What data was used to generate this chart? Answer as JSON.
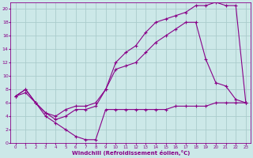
{
  "xlabel": "Windchill (Refroidissement éolien,°C)",
  "bg_color": "#cce8e8",
  "grid_color": "#aacccc",
  "line_color": "#880088",
  "xlim": [
    -0.5,
    23.5
  ],
  "ylim": [
    0,
    21
  ],
  "ytick_vals": [
    0,
    2,
    4,
    6,
    8,
    10,
    12,
    14,
    16,
    18,
    20
  ],
  "series": [
    {
      "x": [
        0,
        1,
        2,
        3,
        4,
        5,
        6,
        7,
        8,
        9,
        10,
        11,
        12,
        13,
        14,
        15,
        16,
        17,
        18,
        19,
        20,
        21,
        22,
        23
      ],
      "y": [
        7,
        7.5,
        6,
        4,
        3,
        2,
        1,
        0.5,
        0.5,
        5,
        5,
        5,
        5,
        5,
        5,
        5,
        5.5,
        5.5,
        5.5,
        5.5,
        6,
        6,
        6,
        6
      ]
    },
    {
      "x": [
        0,
        1,
        2,
        3,
        4,
        5,
        6,
        7,
        8,
        9,
        10,
        11,
        12,
        13,
        14,
        15,
        16,
        17,
        18,
        19,
        20,
        21,
        22,
        23
      ],
      "y": [
        7,
        8,
        6,
        4.5,
        3.5,
        4,
        5,
        5,
        5.5,
        8,
        11,
        11.5,
        12,
        13.5,
        15,
        16,
        17,
        18,
        18,
        12.5,
        9,
        8.5,
        6.5,
        6
      ]
    },
    {
      "x": [
        0,
        1,
        2,
        3,
        4,
        5,
        6,
        7,
        8,
        9,
        10,
        11,
        12,
        13,
        14,
        15,
        16,
        17,
        18,
        19,
        20,
        21,
        22,
        23
      ],
      "y": [
        7,
        8,
        6,
        4.5,
        4,
        5,
        5.5,
        5.5,
        6,
        8,
        12,
        13.5,
        14.5,
        16.5,
        18,
        18.5,
        19,
        19.5,
        20.5,
        20.5,
        21,
        20.5,
        20.5,
        6
      ]
    }
  ]
}
